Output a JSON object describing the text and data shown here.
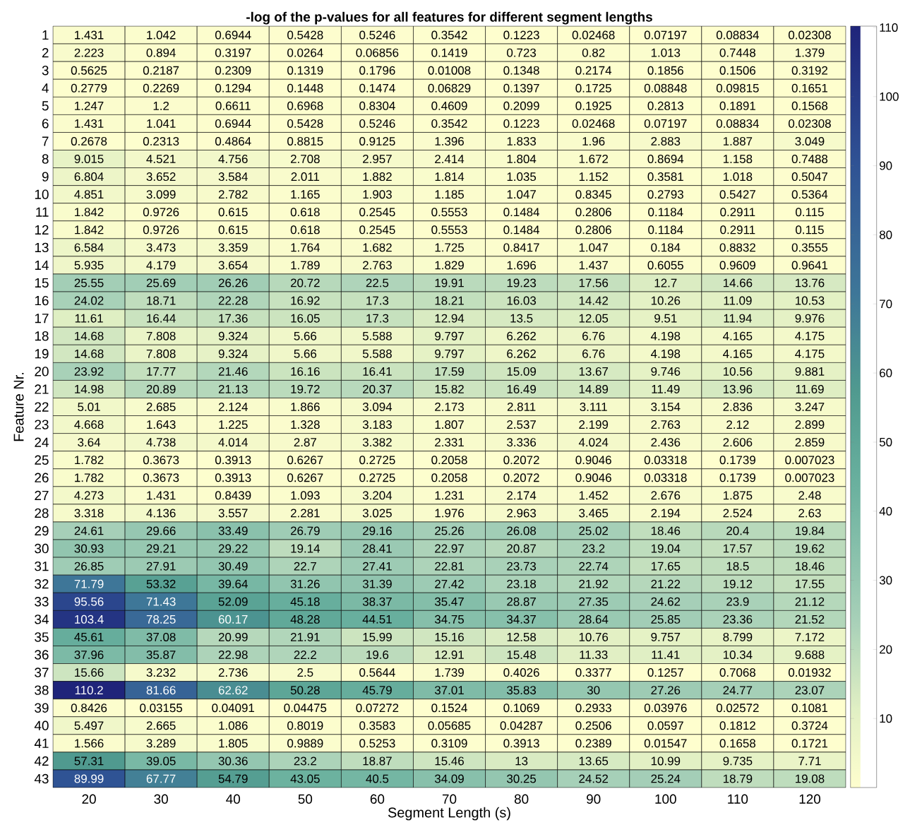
{
  "chart_data": {
    "type": "heatmap",
    "title": "-log of the p-values for all features for different segment lengths",
    "xlabel": "Segment Length (s)",
    "ylabel": "Feature Nr.",
    "categories": [
      "20",
      "30",
      "40",
      "50",
      "60",
      "70",
      "80",
      "90",
      "100",
      "110",
      "120"
    ],
    "y_categories": [
      "1",
      "2",
      "3",
      "4",
      "5",
      "6",
      "7",
      "8",
      "9",
      "10",
      "11",
      "12",
      "13",
      "14",
      "15",
      "16",
      "17",
      "18",
      "19",
      "20",
      "21",
      "22",
      "23",
      "24",
      "25",
      "26",
      "27",
      "28",
      "29",
      "30",
      "31",
      "32",
      "33",
      "34",
      "35",
      "36",
      "37",
      "38",
      "39",
      "40",
      "41",
      "42",
      "43"
    ],
    "cells": [
      [
        1.431,
        1.042,
        0.6944,
        0.5428,
        0.5246,
        0.3542,
        0.1223,
        0.02468,
        0.07197,
        0.08834,
        0.02308
      ],
      [
        2.223,
        0.894,
        0.3197,
        0.0264,
        0.06856,
        0.1419,
        0.723,
        0.82,
        1.013,
        0.7448,
        1.379
      ],
      [
        0.5625,
        0.2187,
        0.2309,
        0.1319,
        0.1796,
        0.01008,
        0.1348,
        0.2174,
        0.1856,
        0.1506,
        0.3192
      ],
      [
        0.2779,
        0.2269,
        0.1294,
        0.1448,
        0.1474,
        0.06829,
        0.1397,
        0.1725,
        0.08848,
        0.09815,
        0.1651
      ],
      [
        1.247,
        1.2,
        0.6611,
        0.6968,
        0.8304,
        0.4609,
        0.2099,
        0.1925,
        0.2813,
        0.1891,
        0.1568
      ],
      [
        1.431,
        1.041,
        0.6944,
        0.5428,
        0.5246,
        0.3542,
        0.1223,
        0.02468,
        0.07197,
        0.08834,
        0.02308
      ],
      [
        0.2678,
        0.2313,
        0.4864,
        0.8815,
        0.9125,
        1.396,
        1.833,
        1.96,
        2.883,
        1.887,
        3.049
      ],
      [
        9.015,
        4.521,
        4.756,
        2.708,
        2.957,
        2.414,
        1.804,
        1.672,
        0.8694,
        1.158,
        0.7488
      ],
      [
        6.804,
        3.652,
        3.584,
        2.011,
        1.882,
        1.814,
        1.035,
        1.152,
        0.3581,
        1.018,
        0.5047
      ],
      [
        4.851,
        3.099,
        2.782,
        1.165,
        1.903,
        1.185,
        1.047,
        0.8345,
        0.2793,
        0.5427,
        0.5364
      ],
      [
        1.842,
        0.9726,
        0.615,
        0.618,
        0.2545,
        0.5553,
        0.1484,
        0.2806,
        0.1184,
        0.2911,
        0.115
      ],
      [
        1.842,
        0.9726,
        0.615,
        0.618,
        0.2545,
        0.5553,
        0.1484,
        0.2806,
        0.1184,
        0.2911,
        0.115
      ],
      [
        6.584,
        3.473,
        3.359,
        1.764,
        1.682,
        1.725,
        0.8417,
        1.047,
        0.184,
        0.8832,
        0.3555
      ],
      [
        5.935,
        4.179,
        3.654,
        1.789,
        2.763,
        1.829,
        1.696,
        1.437,
        0.6055,
        0.9609,
        0.9641
      ],
      [
        25.55,
        25.69,
        26.26,
        20.72,
        22.5,
        19.91,
        19.23,
        17.56,
        12.7,
        14.66,
        13.76
      ],
      [
        24.02,
        18.71,
        22.28,
        16.92,
        17.3,
        18.21,
        16.03,
        14.42,
        10.26,
        11.09,
        10.53
      ],
      [
        11.61,
        16.44,
        17.36,
        16.05,
        17.3,
        12.94,
        13.5,
        12.05,
        9.51,
        11.94,
        9.976
      ],
      [
        14.68,
        7.808,
        9.324,
        5.66,
        5.588,
        9.797,
        6.262,
        6.76,
        4.198,
        4.165,
        4.175
      ],
      [
        14.68,
        7.808,
        9.324,
        5.66,
        5.588,
        9.797,
        6.262,
        6.76,
        4.198,
        4.165,
        4.175
      ],
      [
        23.92,
        17.77,
        21.46,
        16.16,
        16.41,
        17.59,
        15.09,
        13.67,
        9.746,
        10.56,
        9.881
      ],
      [
        14.98,
        20.89,
        21.13,
        19.72,
        20.37,
        15.82,
        16.49,
        14.89,
        11.49,
        13.96,
        11.69
      ],
      [
        5.01,
        2.685,
        2.124,
        1.866,
        3.094,
        2.173,
        2.811,
        3.111,
        3.154,
        2.836,
        3.247
      ],
      [
        4.668,
        1.643,
        1.225,
        1.328,
        3.183,
        1.807,
        2.537,
        2.199,
        2.763,
        2.12,
        2.899
      ],
      [
        3.64,
        4.738,
        4.014,
        2.87,
        3.382,
        2.331,
        3.336,
        4.024,
        2.436,
        2.606,
        2.859
      ],
      [
        1.782,
        0.3673,
        0.3913,
        0.6267,
        0.2725,
        0.2058,
        0.2072,
        0.9046,
        0.03318,
        0.1739,
        0.007023
      ],
      [
        1.782,
        0.3673,
        0.3913,
        0.6267,
        0.2725,
        0.2058,
        0.2072,
        0.9046,
        0.03318,
        0.1739,
        0.007023
      ],
      [
        4.273,
        1.431,
        0.8439,
        1.093,
        3.204,
        1.231,
        2.174,
        1.452,
        2.676,
        1.875,
        2.48
      ],
      [
        3.318,
        4.136,
        3.557,
        2.281,
        3.025,
        1.976,
        2.963,
        3.465,
        2.194,
        2.524,
        2.63
      ],
      [
        24.61,
        29.66,
        33.49,
        26.79,
        29.16,
        25.26,
        26.08,
        25.02,
        18.46,
        20.4,
        19.84
      ],
      [
        30.93,
        29.21,
        29.22,
        19.14,
        28.41,
        22.97,
        20.87,
        23.2,
        19.04,
        17.57,
        19.62
      ],
      [
        26.85,
        27.91,
        30.49,
        22.7,
        27.41,
        22.81,
        23.73,
        22.74,
        17.65,
        18.5,
        18.46
      ],
      [
        71.79,
        53.32,
        39.64,
        31.26,
        31.39,
        27.42,
        23.18,
        21.92,
        21.22,
        19.12,
        17.55
      ],
      [
        95.56,
        71.43,
        52.09,
        45.18,
        38.37,
        35.47,
        28.87,
        27.35,
        24.62,
        23.9,
        21.12
      ],
      [
        103.4,
        78.25,
        60.17,
        48.28,
        44.51,
        34.75,
        34.37,
        28.64,
        25.85,
        23.36,
        21.52
      ],
      [
        45.61,
        37.08,
        20.99,
        21.91,
        15.99,
        15.16,
        12.58,
        10.76,
        9.757,
        8.799,
        7.172
      ],
      [
        37.96,
        35.87,
        22.98,
        22.2,
        19.6,
        12.91,
        15.48,
        11.33,
        11.41,
        10.34,
        9.688
      ],
      [
        15.66,
        3.232,
        2.736,
        2.5,
        0.5644,
        1.739,
        0.4026,
        0.3377,
        0.1257,
        0.7068,
        0.01932
      ],
      [
        110.2,
        81.66,
        62.62,
        50.28,
        45.79,
        37.01,
        35.83,
        30,
        27.26,
        24.77,
        23.07
      ],
      [
        0.8426,
        0.03155,
        0.04091,
        0.04475,
        0.07272,
        0.1524,
        0.1069,
        0.2933,
        0.03976,
        0.02572,
        0.1081
      ],
      [
        5.497,
        2.665,
        1.086,
        0.8019,
        0.3583,
        0.05685,
        0.04287,
        0.2506,
        0.0597,
        0.1812,
        0.3724
      ],
      [
        1.566,
        3.289,
        1.805,
        0.9889,
        0.5253,
        0.3109,
        0.3913,
        0.2389,
        0.01547,
        0.1658,
        0.1721
      ],
      [
        57.31,
        39.05,
        30.36,
        23.2,
        18.87,
        15.46,
        13,
        13.65,
        10.99,
        9.735,
        7.71
      ],
      [
        89.99,
        67.77,
        54.79,
        43.05,
        40.5,
        34.09,
        30.25,
        24.52,
        25.24,
        18.79,
        19.08
      ]
    ],
    "data_labels": true,
    "clim": [
      0.007023,
      110.2
    ],
    "cticks": [
      10,
      20,
      30,
      40,
      50,
      60,
      70,
      80,
      90,
      100,
      110
    ]
  }
}
